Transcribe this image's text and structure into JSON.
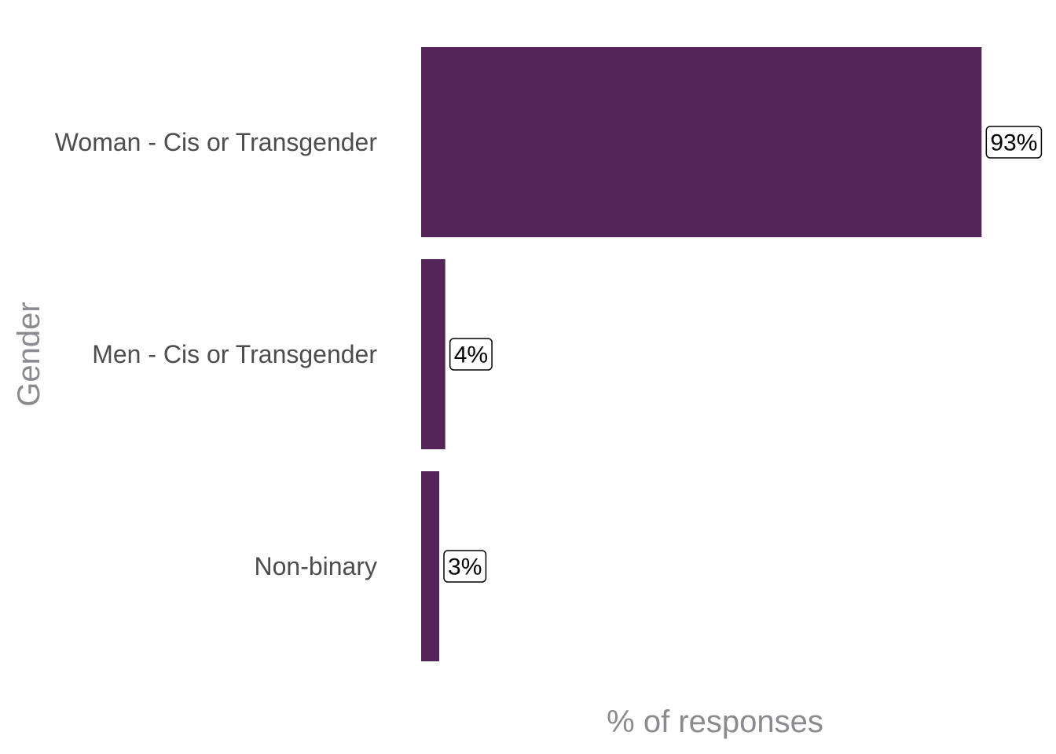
{
  "chart_data": {
    "type": "bar",
    "orientation": "horizontal",
    "xlabel": "% of responses",
    "ylabel": "Gender",
    "categories": [
      "Woman - Cis or Transgender",
      "Men - Cis or Transgender",
      "Non-binary"
    ],
    "values": [
      93,
      4,
      3
    ],
    "data_labels": [
      "93%",
      "4%",
      "3%"
    ],
    "xlim": [
      0,
      100
    ],
    "grid": false,
    "legend": "none",
    "bar_color": "#55255a"
  }
}
